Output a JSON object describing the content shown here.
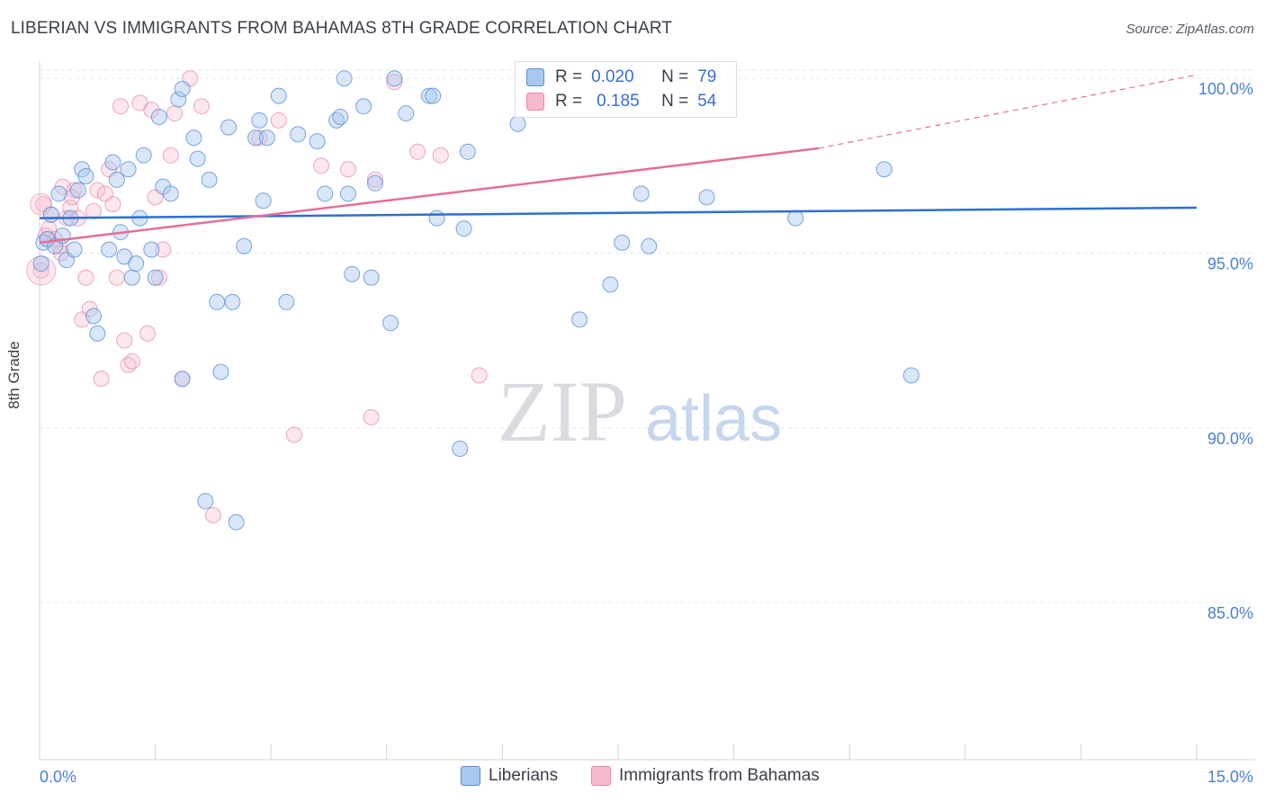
{
  "title": "LIBERIAN VS IMMIGRANTS FROM BAHAMAS 8TH GRADE CORRELATION CHART",
  "source": "Source: ZipAtlas.com",
  "watermark": {
    "zip": "ZIP",
    "atlas": "atlas"
  },
  "colors": {
    "blue_fill": "#a9c8f0",
    "blue_stroke": "#5b8fd8",
    "blue_line": "#2e6fd0",
    "pink_fill": "#f6b9cc",
    "pink_stroke": "#e78aa8",
    "pink_line": "#e46e98",
    "tick_label": "#4a7fd4",
    "grid": "#e3e6ea"
  },
  "stats": {
    "rows": [
      {
        "r_label": "R =",
        "r_value": "0.020",
        "n_label": "N =",
        "n_value": "79"
      },
      {
        "r_label": "R =",
        "r_value": "0.185",
        "n_label": "N =",
        "n_value": "54"
      }
    ]
  },
  "legend": {
    "items": [
      "Liberians",
      "Immigrants from Bahamas"
    ]
  },
  "chart_data": {
    "type": "scatter",
    "title": "LIBERIAN VS IMMIGRANTS FROM BAHAMAS 8TH GRADE CORRELATION CHART",
    "xlabel": "",
    "ylabel": "8th Grade",
    "xlim": [
      0,
      15
    ],
    "ylim": [
      80.5,
      100.7
    ],
    "x_tick_labels": {
      "left": "0.0%",
      "right": "15.0%"
    },
    "y_ticks": [
      85,
      90,
      95,
      100
    ],
    "y_tick_labels": [
      "85.0%",
      "90.0%",
      "95.0%",
      "100.0%"
    ],
    "grid": true,
    "legend_position": "bottom-center",
    "series": [
      {
        "name": "Liberians",
        "trend": {
          "x": [
            0,
            15
          ],
          "y": [
            96.0,
            96.3
          ]
        },
        "points": [
          [
            0.05,
            95.3
          ],
          [
            0.1,
            95.4
          ],
          [
            0.15,
            96.1
          ],
          [
            0.2,
            95.2
          ],
          [
            0.25,
            96.7
          ],
          [
            0.3,
            95.5
          ],
          [
            0.35,
            94.8
          ],
          [
            0.4,
            96.0
          ],
          [
            0.45,
            95.1
          ],
          [
            0.5,
            96.8
          ],
          [
            0.55,
            97.4
          ],
          [
            0.6,
            97.2
          ],
          [
            0.7,
            93.2
          ],
          [
            0.75,
            92.7
          ],
          [
            0.9,
            95.1
          ],
          [
            0.95,
            97.6
          ],
          [
            1.0,
            97.1
          ],
          [
            1.05,
            95.6
          ],
          [
            1.1,
            94.9
          ],
          [
            1.15,
            97.4
          ],
          [
            1.2,
            94.3
          ],
          [
            1.25,
            94.7
          ],
          [
            1.3,
            96.0
          ],
          [
            1.35,
            97.8
          ],
          [
            1.45,
            95.1
          ],
          [
            1.5,
            94.3
          ],
          [
            1.55,
            98.9
          ],
          [
            1.6,
            96.9
          ],
          [
            1.7,
            96.7
          ],
          [
            1.8,
            99.4
          ],
          [
            1.85,
            99.7
          ],
          [
            1.85,
            91.4
          ],
          [
            2.0,
            98.3
          ],
          [
            2.05,
            97.7
          ],
          [
            2.15,
            87.9
          ],
          [
            2.2,
            97.1
          ],
          [
            2.3,
            93.6
          ],
          [
            2.35,
            91.6
          ],
          [
            2.45,
            98.6
          ],
          [
            2.5,
            93.6
          ],
          [
            2.55,
            87.3
          ],
          [
            2.65,
            95.2
          ],
          [
            2.8,
            98.3
          ],
          [
            2.85,
            98.8
          ],
          [
            2.9,
            96.5
          ],
          [
            2.95,
            98.3
          ],
          [
            3.1,
            99.5
          ],
          [
            3.2,
            93.6
          ],
          [
            3.35,
            98.4
          ],
          [
            3.6,
            98.2
          ],
          [
            3.7,
            96.7
          ],
          [
            3.85,
            98.8
          ],
          [
            3.9,
            98.9
          ],
          [
            3.95,
            100.0
          ],
          [
            4.0,
            96.7
          ],
          [
            4.05,
            94.4
          ],
          [
            4.2,
            99.2
          ],
          [
            4.3,
            94.3
          ],
          [
            4.35,
            97.0
          ],
          [
            4.55,
            93.0
          ],
          [
            4.6,
            100.0
          ],
          [
            4.75,
            99.0
          ],
          [
            5.05,
            99.5
          ],
          [
            5.1,
            99.5
          ],
          [
            5.15,
            96.0
          ],
          [
            5.45,
            89.4
          ],
          [
            5.5,
            95.7
          ],
          [
            5.55,
            97.9
          ],
          [
            6.2,
            98.7
          ],
          [
            7.0,
            93.1
          ],
          [
            7.4,
            94.1
          ],
          [
            7.55,
            95.3
          ],
          [
            7.8,
            96.7
          ],
          [
            7.9,
            95.2
          ],
          [
            8.65,
            96.6
          ],
          [
            9.8,
            96.0
          ],
          [
            10.95,
            97.4
          ],
          [
            11.3,
            91.5
          ],
          [
            0.02,
            94.7
          ]
        ]
      },
      {
        "name": "Immigrants from Bahamas",
        "trend": {
          "x": [
            0,
            10.1
          ],
          "y": [
            95.3,
            98.0
          ]
        },
        "trend_dashed": {
          "x": [
            10.1,
            15
          ],
          "y": [
            98.0,
            100.1
          ]
        },
        "points": [
          [
            0.05,
            96.4
          ],
          [
            0.1,
            95.4
          ],
          [
            0.12,
            95.7
          ],
          [
            0.15,
            96.1
          ],
          [
            0.2,
            95.4
          ],
          [
            0.25,
            95.2
          ],
          [
            0.3,
            96.9
          ],
          [
            0.35,
            96.0
          ],
          [
            0.4,
            96.3
          ],
          [
            0.45,
            96.8
          ],
          [
            0.5,
            96.0
          ],
          [
            0.55,
            93.1
          ],
          [
            0.6,
            94.3
          ],
          [
            0.65,
            93.4
          ],
          [
            0.7,
            96.2
          ],
          [
            0.75,
            96.8
          ],
          [
            0.8,
            91.4
          ],
          [
            0.85,
            96.7
          ],
          [
            0.9,
            97.4
          ],
          [
            0.95,
            96.4
          ],
          [
            1.0,
            94.3
          ],
          [
            1.05,
            99.2
          ],
          [
            1.1,
            92.5
          ],
          [
            1.15,
            91.8
          ],
          [
            1.2,
            91.9
          ],
          [
            1.3,
            99.3
          ],
          [
            1.4,
            92.7
          ],
          [
            1.45,
            99.1
          ],
          [
            1.5,
            96.6
          ],
          [
            1.55,
            94.3
          ],
          [
            1.6,
            95.1
          ],
          [
            1.7,
            97.8
          ],
          [
            1.75,
            99.0
          ],
          [
            1.85,
            91.4
          ],
          [
            1.95,
            100.0
          ],
          [
            2.1,
            99.2
          ],
          [
            2.25,
            87.5
          ],
          [
            2.85,
            98.3
          ],
          [
            3.1,
            98.8
          ],
          [
            3.3,
            89.8
          ],
          [
            3.65,
            97.5
          ],
          [
            4.0,
            97.4
          ],
          [
            4.3,
            90.3
          ],
          [
            4.35,
            97.1
          ],
          [
            4.6,
            99.9
          ],
          [
            4.9,
            97.9
          ],
          [
            5.2,
            97.8
          ],
          [
            5.7,
            91.5
          ],
          [
            7.75,
            100.0
          ],
          [
            8.3,
            100.0
          ],
          [
            0.08,
            95.5
          ],
          [
            0.02,
            94.5
          ],
          [
            0.28,
            95.0
          ],
          [
            0.42,
            96.6
          ]
        ]
      }
    ]
  }
}
